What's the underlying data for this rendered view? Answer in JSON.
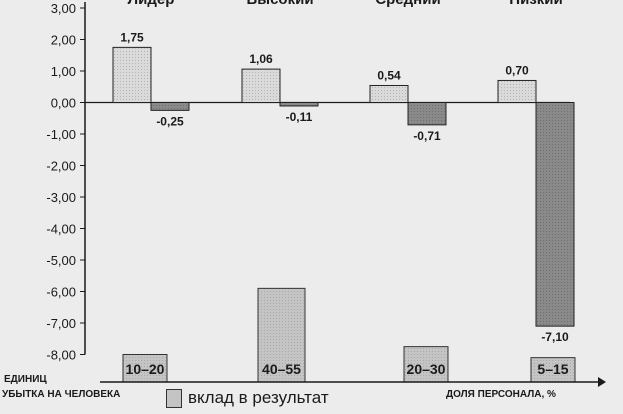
{
  "chart_data": {
    "type": "bar",
    "categories": [
      "Лидер",
      "Высокий",
      "Средний",
      "Низкий"
    ],
    "series": [
      {
        "name": "Вклад в результат",
        "values": [
          1.75,
          1.06,
          0.54,
          0.7
        ]
      },
      {
        "values": [
          -0.25,
          -0.11,
          -0.71,
          -7.1
        ]
      }
    ],
    "personnel_share": [
      "10–20",
      "40–55",
      "20–30",
      "5–15"
    ],
    "personnel_share_bar_levels": [
      -8.0,
      -5.9,
      -7.75,
      -8.1
    ],
    "value_labels": [
      [
        "1,75",
        "-0,25"
      ],
      [
        "1,06",
        "-0,11"
      ],
      [
        "0,54",
        "-0,71"
      ],
      [
        "0,70",
        "-7,10"
      ]
    ],
    "ylim": [
      -8.0,
      3.0
    ],
    "yticks": [
      "3,00",
      "2,00",
      "1,00",
      "0,00",
      "-1,00",
      "-2,00",
      "-3,00",
      "-4,00",
      "-5,00",
      "-6,00",
      "-7,00",
      "-8,00"
    ],
    "ylabel_line1": "ЕДИНИЦ",
    "ylabel_line2": "УБЫТКА НА ЧЕЛОВЕКА",
    "xlabel": "ДОЛЯ ПЕРСОНАЛА, %",
    "grid": false,
    "legend": {
      "position": "bottom",
      "label": "вклад в результат"
    },
    "colors": {
      "positive": "#dadada",
      "negative": "#8a8a8a",
      "share": "#c4c4c4"
    }
  }
}
